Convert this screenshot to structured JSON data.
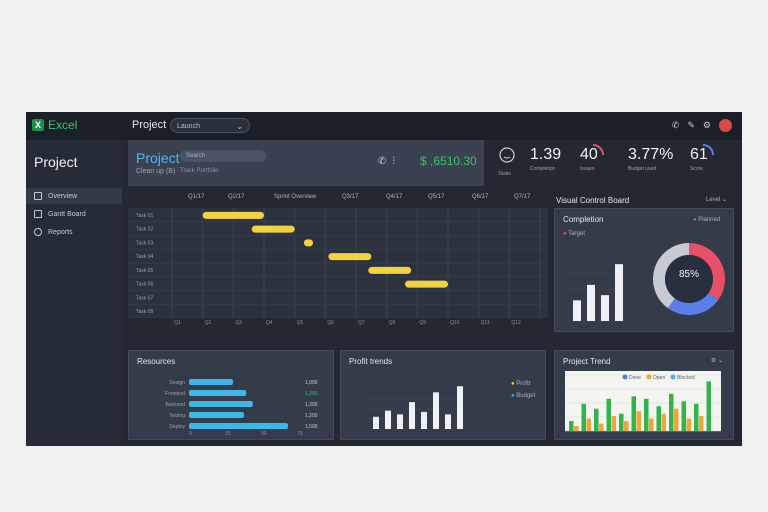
{
  "app": {
    "logo": "Excel",
    "title": "Project",
    "select_value": "Launch"
  },
  "sidebar": {
    "title": "Project",
    "items": [
      {
        "label": "Overview"
      },
      {
        "label": "Gantt Board"
      },
      {
        "label": "Reports"
      }
    ]
  },
  "project": {
    "title": "Project",
    "subtitle": "Clean up (B)",
    "search_placeholder": "Search",
    "caption": "Track Portfolio",
    "value": "$ ,6510.30",
    "value_color": "#38c46a"
  },
  "kpis": [
    {
      "value": "",
      "label": "Tasks"
    },
    {
      "value": "1.39",
      "label": "Completion"
    },
    {
      "value": "40",
      "label": "Issues"
    },
    {
      "value": "3.77%",
      "label": "Budget used"
    },
    {
      "value": "61",
      "label": "Score"
    }
  ],
  "gantt": {
    "headers": [
      "Q1/17",
      "Q2/17",
      "Sprint Overview",
      "Q3/17",
      "Q4/17",
      "Q5/17",
      "Q6/17",
      "Q7/17"
    ],
    "axis_labels": [
      "Q1",
      "Q2",
      "Q3",
      "Q4",
      "Q5",
      "Q6",
      "Q7",
      "Q8",
      "Q9",
      "Q10",
      "Q11",
      "Q12"
    ],
    "tasks": [
      {
        "name": "Task 01",
        "start": 1,
        "end": 3
      },
      {
        "name": "Task 02",
        "start": 2.6,
        "end": 4
      },
      {
        "name": "Task 03",
        "start": 4.3,
        "end": 4.6
      },
      {
        "name": "Task 04",
        "start": 5.1,
        "end": 6.5
      },
      {
        "name": "Task 05",
        "start": 6.4,
        "end": 7.8
      },
      {
        "name": "Task 06",
        "start": 7.6,
        "end": 9.0
      },
      {
        "name": "Task 07",
        "start": 0,
        "end": 0
      },
      {
        "name": "Task 08",
        "start": 0,
        "end": 0
      }
    ],
    "bar_color": "#f3d23c"
  },
  "right": {
    "title": "Visual Control Board",
    "dropdown": "Level"
  },
  "completion": {
    "title": "Completion",
    "legend": [
      "Target",
      "Planned"
    ],
    "bars": [
      20,
      35,
      25,
      55
    ],
    "donut_value": "85%",
    "donut_segments": [
      {
        "value": 35,
        "color": "#e8506a"
      },
      {
        "value": 25,
        "color": "#5b7fe8"
      },
      {
        "value": 40,
        "color": "#c6cad3"
      }
    ]
  },
  "resources": {
    "title": "Resources",
    "rows": [
      {
        "label": "Design",
        "value": 40,
        "amount": "1,000"
      },
      {
        "label": "Frontend",
        "value": 52,
        "amount": "1,250"
      },
      {
        "label": "Backend",
        "value": 58,
        "amount": "1,300"
      },
      {
        "label": "Testing",
        "value": 50,
        "amount": "1,200"
      },
      {
        "label": "Deploy",
        "value": 90,
        "amount": "1,500"
      }
    ],
    "bar_color": "#3fb6e8",
    "axis": [
      "0",
      "25",
      "50",
      "75"
    ]
  },
  "profits": {
    "title": "Profit trends",
    "values": [
      10,
      15,
      12,
      22,
      14,
      30,
      12,
      35
    ],
    "legend": [
      "Profit",
      "Budget"
    ],
    "legend_colors": [
      "#f3d23c",
      "#3fb6e8"
    ]
  },
  "project_trend": {
    "title": "Project Trend",
    "legend": [
      "Done",
      "Open",
      "Blocked"
    ],
    "legend_colors": [
      "#4d7fe0",
      "#f2a33a",
      "#3fb6e8"
    ],
    "series": [
      {
        "name": "Done",
        "color": "#31b44a",
        "values": [
          8,
          22,
          18,
          26,
          14,
          28,
          26,
          20,
          30,
          24,
          22,
          40
        ]
      },
      {
        "name": "Open",
        "color": "#f2a33a",
        "values": [
          4,
          10,
          6,
          12,
          8,
          16,
          10,
          14,
          18,
          10,
          12,
          0
        ]
      }
    ]
  }
}
